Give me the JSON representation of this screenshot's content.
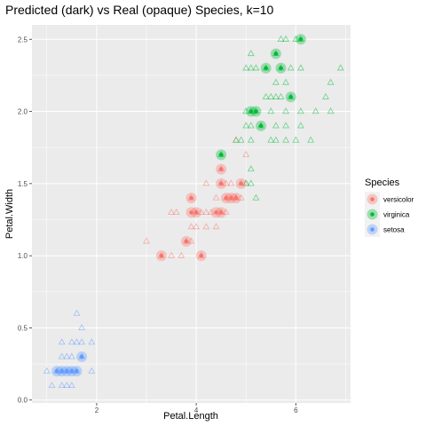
{
  "chart_data": {
    "type": "scatter",
    "title": "Predicted (dark) vs Real (opaque) Species, k=10",
    "xlabel": "Petal.Length",
    "ylabel": "Petal.Width",
    "xlim": [
      0.7,
      7.1
    ],
    "ylim": [
      -0.02,
      2.6
    ],
    "xticks": [
      2,
      4,
      6
    ],
    "yticks": [
      0.0,
      0.5,
      1.0,
      1.5,
      2.0,
      2.5
    ],
    "xtick_labels": [
      "2",
      "4",
      "6"
    ],
    "ytick_labels": [
      "0.0",
      "0.5",
      "1.0",
      "1.5",
      "2.0",
      "2.5"
    ],
    "grid": true,
    "legend": {
      "title": "Species",
      "placement": "right",
      "entries": [
        {
          "label": "versicolor",
          "color": "#F8766D"
        },
        {
          "label": "virginica",
          "color": "#00BA38"
        },
        {
          "label": "setosa",
          "color": "#619CFF"
        }
      ]
    },
    "colors": {
      "versicolor": "#F8766D",
      "virginica": "#00BA38",
      "setosa": "#619CFF",
      "panel_background": "#EBEBEB",
      "grid": "#FFFFFF"
    },
    "series": [
      {
        "name": "setosa",
        "kind": "real",
        "marker": "triangle",
        "points": [
          [
            1.1,
            0.1
          ],
          [
            1.3,
            0.1
          ],
          [
            1.4,
            0.1
          ],
          [
            1.5,
            0.1
          ],
          [
            1.2,
            0.2
          ],
          [
            1.3,
            0.2
          ],
          [
            1.4,
            0.2
          ],
          [
            1.5,
            0.2
          ],
          [
            1.6,
            0.2
          ],
          [
            1.9,
            0.2
          ],
          [
            1.0,
            0.2
          ],
          [
            1.3,
            0.3
          ],
          [
            1.4,
            0.3
          ],
          [
            1.5,
            0.3
          ],
          [
            1.7,
            0.3
          ],
          [
            1.5,
            0.4
          ],
          [
            1.3,
            0.4
          ],
          [
            1.6,
            0.4
          ],
          [
            1.7,
            0.4
          ],
          [
            1.9,
            0.4
          ],
          [
            1.7,
            0.5
          ],
          [
            1.6,
            0.6
          ]
        ]
      },
      {
        "name": "versicolor",
        "kind": "real",
        "marker": "triangle",
        "points": [
          [
            3.0,
            1.1
          ],
          [
            3.3,
            1.0
          ],
          [
            3.5,
            1.0
          ],
          [
            3.7,
            1.0
          ],
          [
            4.1,
            1.0
          ],
          [
            3.9,
            1.1
          ],
          [
            3.8,
            1.1
          ],
          [
            4.0,
            1.2
          ],
          [
            4.2,
            1.2
          ],
          [
            4.4,
            1.2
          ],
          [
            3.9,
            1.2
          ],
          [
            4.0,
            1.3
          ],
          [
            4.1,
            1.3
          ],
          [
            4.2,
            1.3
          ],
          [
            4.3,
            1.3
          ],
          [
            4.5,
            1.3
          ],
          [
            4.6,
            1.3
          ],
          [
            3.6,
            1.3
          ],
          [
            3.5,
            1.3
          ],
          [
            4.4,
            1.4
          ],
          [
            4.6,
            1.4
          ],
          [
            4.7,
            1.4
          ],
          [
            4.8,
            1.4
          ],
          [
            3.9,
            1.4
          ],
          [
            4.2,
            1.5
          ],
          [
            4.5,
            1.5
          ],
          [
            4.6,
            1.5
          ],
          [
            4.7,
            1.5
          ],
          [
            4.9,
            1.5
          ],
          [
            5.0,
            1.5
          ],
          [
            4.5,
            1.6
          ],
          [
            4.8,
            1.8
          ],
          [
            5.0,
            1.7
          ],
          [
            4.8,
            1.4
          ],
          [
            4.9,
            1.4
          ]
        ]
      },
      {
        "name": "virginica",
        "kind": "real",
        "marker": "triangle",
        "points": [
          [
            4.5,
            1.7
          ],
          [
            5.0,
            1.5
          ],
          [
            5.1,
            1.5
          ],
          [
            5.1,
            1.6
          ],
          [
            4.9,
            1.8
          ],
          [
            4.8,
            1.8
          ],
          [
            5.1,
            1.8
          ],
          [
            5.5,
            1.8
          ],
          [
            5.6,
            1.8
          ],
          [
            5.8,
            1.8
          ],
          [
            6.0,
            1.8
          ],
          [
            6.3,
            1.8
          ],
          [
            5.0,
            1.9
          ],
          [
            5.1,
            1.9
          ],
          [
            5.3,
            1.9
          ],
          [
            5.6,
            1.9
          ],
          [
            5.8,
            1.9
          ],
          [
            5.0,
            2.0
          ],
          [
            5.1,
            2.0
          ],
          [
            5.2,
            2.0
          ],
          [
            5.5,
            2.0
          ],
          [
            5.8,
            2.0
          ],
          [
            6.1,
            2.0
          ],
          [
            6.4,
            2.0
          ],
          [
            6.7,
            2.0
          ],
          [
            5.7,
            2.1
          ],
          [
            5.6,
            2.1
          ],
          [
            5.9,
            2.1
          ],
          [
            5.5,
            2.1
          ],
          [
            6.6,
            2.1
          ],
          [
            5.4,
            2.1
          ],
          [
            5.8,
            2.2
          ],
          [
            6.7,
            2.2
          ],
          [
            5.6,
            2.2
          ],
          [
            5.1,
            2.3
          ],
          [
            5.4,
            2.3
          ],
          [
            5.7,
            2.3
          ],
          [
            5.9,
            2.3
          ],
          [
            6.1,
            2.3
          ],
          [
            6.9,
            2.3
          ],
          [
            5.2,
            2.3
          ],
          [
            5.0,
            2.3
          ],
          [
            5.6,
            2.4
          ],
          [
            5.1,
            2.4
          ],
          [
            6.1,
            2.5
          ],
          [
            5.7,
            2.5
          ],
          [
            5.8,
            2.5
          ],
          [
            6.0,
            2.5
          ],
          [
            5.2,
            1.4
          ],
          [
            6.1,
            1.9
          ]
        ]
      },
      {
        "name": "setosa",
        "kind": "predicted",
        "marker": "circle",
        "points": [
          [
            1.2,
            0.2
          ],
          [
            1.3,
            0.2
          ],
          [
            1.4,
            0.2
          ],
          [
            1.5,
            0.2
          ],
          [
            1.6,
            0.2
          ],
          [
            1.7,
            0.3
          ]
        ]
      },
      {
        "name": "versicolor",
        "kind": "predicted",
        "marker": "circle",
        "points": [
          [
            3.3,
            1.0
          ],
          [
            4.1,
            1.0
          ],
          [
            3.8,
            1.1
          ],
          [
            4.0,
            1.3
          ],
          [
            3.9,
            1.3
          ],
          [
            4.4,
            1.3
          ],
          [
            4.5,
            1.3
          ],
          [
            3.9,
            1.4
          ],
          [
            4.6,
            1.4
          ],
          [
            4.7,
            1.4
          ],
          [
            4.8,
            1.4
          ],
          [
            4.9,
            1.5
          ],
          [
            4.5,
            1.6
          ],
          [
            4.5,
            1.5
          ]
        ]
      },
      {
        "name": "virginica",
        "kind": "predicted",
        "marker": "circle",
        "points": [
          [
            4.5,
            1.7
          ],
          [
            5.3,
            1.9
          ],
          [
            5.1,
            2.0
          ],
          [
            5.2,
            2.0
          ],
          [
            5.9,
            2.1
          ],
          [
            5.4,
            2.3
          ],
          [
            5.7,
            2.3
          ],
          [
            5.6,
            2.4
          ],
          [
            6.1,
            2.5
          ]
        ]
      }
    ]
  }
}
